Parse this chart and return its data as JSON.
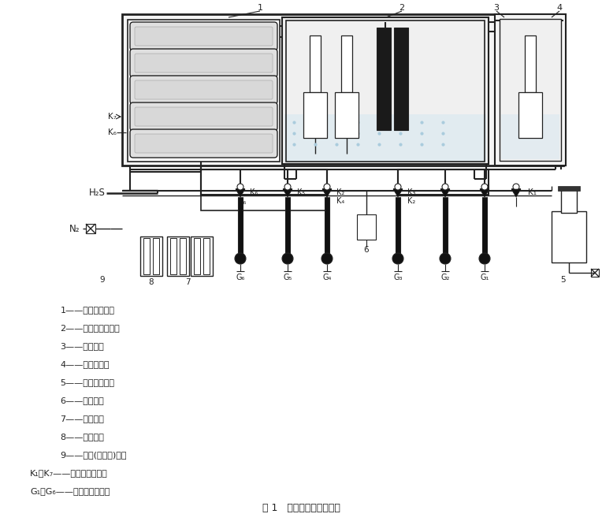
{
  "title": "图 1   饱和硫容量测定装置",
  "legend_lines": [
    [
      "1——湿度调节器；",
      0.1
    ],
    [
      "2——干湿球湿度计；",
      0.1
    ],
    [
      "3——测定管；",
      0.1
    ],
    [
      "4——恒温水浴；",
      0.1
    ],
    [
      "5——空气净化罐；",
      0.1
    ],
    [
      "6——混合器；",
      0.1
    ],
    [
      "7——氨水瓶；",
      0.1
    ],
    [
      "8——洗气瓶；",
      0.1
    ],
    [
      "9——氢气(或煤气)阀；",
      0.1
    ],
    [
      "K₁～K₇——两通玻璃活塞；",
      0.05
    ],
    [
      "G₁～G₆——毛细管流量计。",
      0.05
    ]
  ],
  "bg_color": "#ffffff",
  "line_color": "#222222"
}
